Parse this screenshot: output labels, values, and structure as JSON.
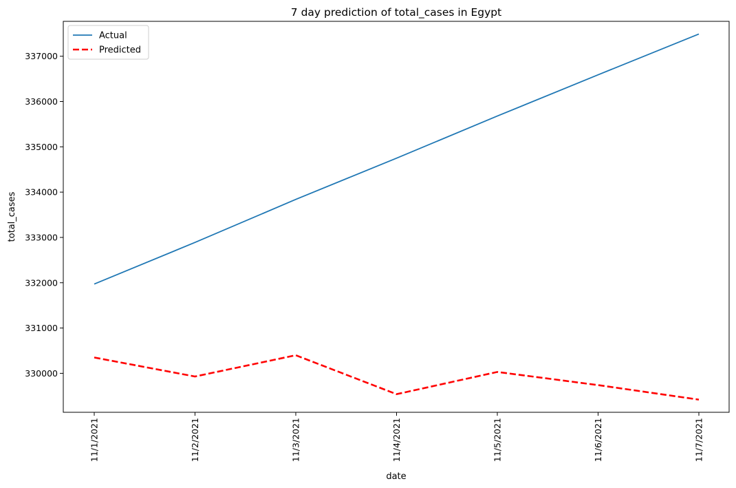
{
  "chart_data": {
    "type": "line",
    "title": "7 day prediction of total_cases in Egypt",
    "xlabel": "date",
    "ylabel": "total_cases",
    "categories": [
      "11/1/2021",
      "11/2/2021",
      "11/3/2021",
      "11/4/2021",
      "11/5/2021",
      "11/6/2021",
      "11/7/2021"
    ],
    "series": [
      {
        "name": "Actual",
        "color": "#1f77b4",
        "style": "solid",
        "values": [
          331970,
          332890,
          333840,
          334750,
          335680,
          336590,
          337490
        ]
      },
      {
        "name": "Predicted",
        "color": "#ff0000",
        "style": "dashed",
        "values": [
          330350,
          329930,
          330400,
          329540,
          330030,
          329740,
          329420
        ]
      }
    ],
    "yticks": [
      330000,
      331000,
      332000,
      333000,
      334000,
      335000,
      336000,
      337000
    ],
    "ylim": [
      329140,
      337770
    ],
    "grid": false,
    "legend_position": "top-left"
  }
}
